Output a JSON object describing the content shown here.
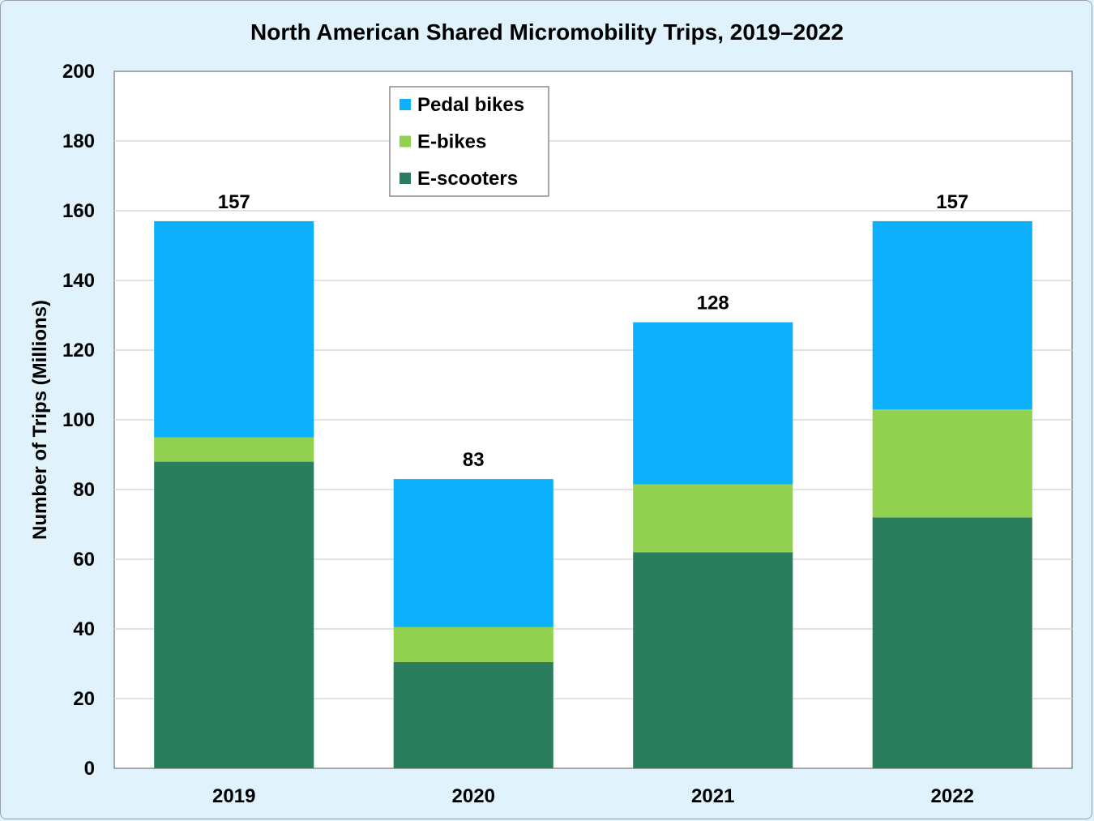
{
  "chart_data": {
    "type": "bar",
    "stacked": true,
    "title": "North American Shared Micromobility Trips, 2019–2022",
    "xlabel": "",
    "ylabel": "Number of Trips (Millions)",
    "ylim": [
      0,
      200
    ],
    "yticks": [
      0,
      20,
      40,
      60,
      80,
      100,
      120,
      140,
      160,
      180,
      200
    ],
    "grid": true,
    "legend_position": "top-left",
    "categories": [
      "2019",
      "2020",
      "2021",
      "2022"
    ],
    "series": [
      {
        "name": "E-scooters",
        "color": "#2a7e5e",
        "values": [
          88,
          30.5,
          62,
          72
        ]
      },
      {
        "name": "E-bikes",
        "color": "#92d050",
        "values": [
          7,
          10,
          19.5,
          31
        ]
      },
      {
        "name": "Pedal bikes",
        "color": "#0cb0fb",
        "values": [
          62,
          42.5,
          46.5,
          54
        ]
      }
    ],
    "totals": [
      "157",
      "83",
      "128",
      "157"
    ],
    "legend_order": [
      "Pedal bikes",
      "E-bikes",
      "E-scooters"
    ]
  }
}
